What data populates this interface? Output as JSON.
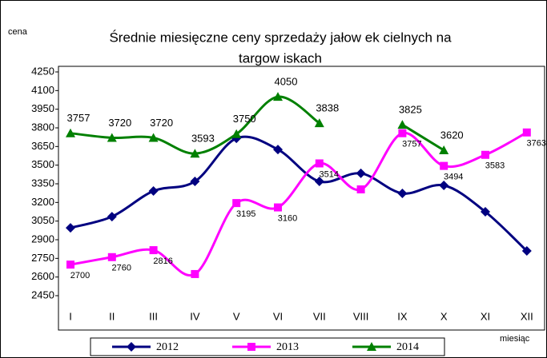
{
  "chart_data": {
    "type": "line",
    "title": [
      "Średnie miesięczne ceny sprzedaży jałow ek cielnych na",
      "targow iskach"
    ],
    "y_label": "cena",
    "x_label": "miesiąc",
    "categories": [
      "I",
      "II",
      "III",
      "IV",
      "V",
      "VI",
      "VII",
      "VIII",
      "IX",
      "X",
      "XI",
      "XII"
    ],
    "series": [
      {
        "name": "2012",
        "color": "#000080",
        "marker": "diamond",
        "values": [
          2996,
          3086,
          3292,
          3369,
          3716,
          3626,
          3369,
          3434,
          3273,
          3337,
          3125,
          2810
        ]
      },
      {
        "name": "2013",
        "color": "#ff00ff",
        "marker": "square",
        "values": [
          2700,
          2760,
          2816,
          2624,
          3195,
          3160,
          3514,
          3305,
          3757,
          3494,
          3583,
          3763
        ],
        "value_labels": [
          "2700",
          "2760",
          "2816",
          null,
          "3195",
          "3160",
          "3514",
          null,
          "3757",
          "3494",
          "3583",
          "3763"
        ]
      },
      {
        "name": "2014",
        "color": "#008000",
        "marker": "triangle",
        "values": [
          3757,
          3720,
          3720,
          3593,
          3750,
          4050,
          3838,
          null,
          3825,
          3620,
          null,
          null
        ],
        "value_labels": [
          "3757",
          "3720",
          "3720",
          "3593",
          "3750",
          "4050",
          "3838",
          null,
          "3825",
          "3620",
          null,
          null
        ]
      }
    ],
    "ylim": [
      2450,
      4250
    ],
    "yticks": [
      2450,
      2600,
      2750,
      2900,
      3050,
      3200,
      3350,
      3500,
      3650,
      3800,
      3950,
      4100,
      4250
    ],
    "grid": false
  }
}
